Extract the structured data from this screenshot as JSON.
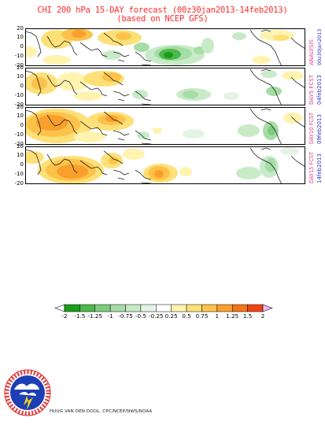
{
  "title": {
    "line1": "CHI 200 hPa 15-DAY forecast (00z30jan2013-14feb2013)",
    "line2": "(based on NCEP GFS)"
  },
  "panels": [
    {
      "label_top": "ANALYSIS",
      "label_bottom": "00z30jan2013"
    },
    {
      "label_top": "DAY5 FCST",
      "label_bottom": "04feb2013"
    },
    {
      "label_top": "DAY10 FCST",
      "label_bottom": "09feb2013"
    },
    {
      "label_top": "DAY15 FCST",
      "label_bottom": "14feb2013"
    }
  ],
  "y_ticks": [
    "20",
    "10",
    "0",
    "-10",
    "-20"
  ],
  "colorbar": {
    "labels": [
      "-2",
      "-1.5",
      "-1.25",
      "-1",
      "-0.75",
      "-0.5",
      "-0.25",
      "0.25",
      "0.5",
      "0.75",
      "1",
      "1.25",
      "1.5",
      "2"
    ],
    "colors": [
      "#1a9e1a",
      "#4cb84c",
      "#7ccc7c",
      "#a6dca6",
      "#c8eac8",
      "#e4f4e4",
      "#ffffff",
      "#fff3b0",
      "#fde077",
      "#fcc24a",
      "#f99f2c",
      "#f5751c",
      "#ee4512"
    ],
    "over_color": "#f4b6f4",
    "under_color": "#ffffff"
  },
  "logo": {
    "text": "NATIONAL WEATHER SERVICE"
  },
  "credit": "HUUG VAN DEN DOOL. CPC/NCEP/NWS/NOAA"
}
